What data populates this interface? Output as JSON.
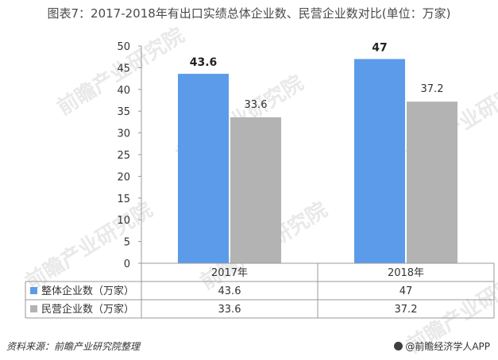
{
  "page": {
    "title": "图表7：2017-2018年有出口实绩总体企业数、民营企业数对比(单位：万家)",
    "watermark": "前瞻产业研究院",
    "source": "资料来源：前瞻产业研究院整理",
    "app_badge": "@前瞻经济学人APP"
  },
  "chart_data": {
    "type": "bar",
    "title": "图表7：2017-2018年有出口实绩总体企业数、民营企业数对比(单位：万家)",
    "categories": [
      "2017年",
      "2018年"
    ],
    "series": [
      {
        "name": "整体企业数（万家）",
        "values": [
          43.6,
          47
        ],
        "color": "#5b9bea",
        "labels": [
          "43.6",
          "47"
        ]
      },
      {
        "name": "民营企业数（万家）",
        "values": [
          33.6,
          37.2
        ],
        "color": "#b3b3b3",
        "labels": [
          "33.6",
          "37.2"
        ]
      }
    ],
    "ylim": [
      0,
      50
    ],
    "yticks": [
      "0",
      "5",
      "10",
      "15",
      "20",
      "25",
      "30",
      "35",
      "40",
      "45",
      "50"
    ],
    "grid": false,
    "legend": "data-table"
  }
}
